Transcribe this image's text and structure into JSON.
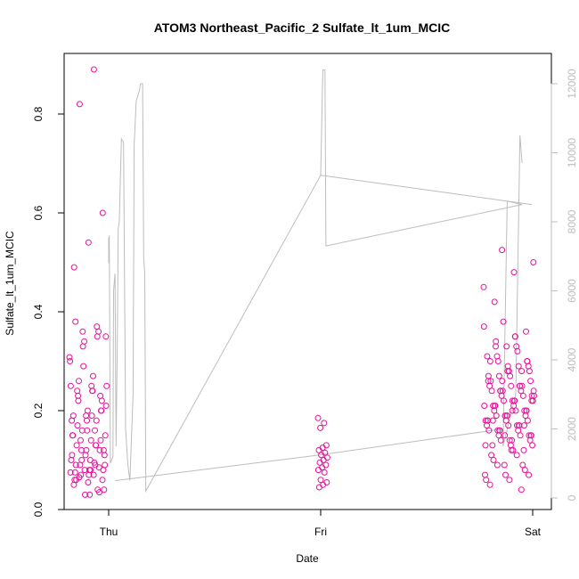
{
  "chart_data": {
    "type": "scatter",
    "title": "ATOM3 Northeast_Pacific_2 Sulfate_lt_1um_MCIC",
    "xlabel": "Date",
    "ylabel": "Sulfate_lt_1um_MCIC",
    "x_ticks": [
      "Thu",
      "Fri",
      "Sat"
    ],
    "y_ticks": [
      "0.0",
      "0.2",
      "0.4",
      "0.6",
      "0.8"
    ],
    "y2_ticks": [
      "0",
      "2000",
      "4000",
      "6000",
      "8000",
      "10000",
      "12000"
    ],
    "ylim": [
      0,
      0.9
    ],
    "y2lim": [
      0,
      12500
    ],
    "colors": {
      "points": "#e8119a",
      "altitude": "#bdbdbd",
      "axis": "#000000"
    },
    "series": [
      {
        "kind": "points",
        "clusters": [
          {
            "day": "Thu",
            "values": [
              0.308,
              0.24,
              0.22,
              0.2,
              0.16,
              0.15,
              0.13,
              0.1,
              0.09,
              0.08,
              0.06,
              0.035,
              0.03,
              0.25,
              0.89,
              0.82,
              0.6,
              0.54,
              0.49,
              0.35,
              0.33,
              0.21,
              0.19,
              0.17,
              0.14,
              0.12,
              0.11,
              0.09,
              0.07,
              0.04,
              0.03,
              0.38,
              0.36,
              0.34,
              0.3,
              0.27,
              0.26,
              0.22,
              0.2,
              0.19,
              0.18,
              0.16,
              0.15,
              0.14,
              0.13,
              0.12,
              0.11,
              0.1,
              0.095,
              0.09,
              0.08,
              0.07,
              0.06,
              0.04,
              0.29,
              0.25,
              0.24,
              0.23,
              0.2,
              0.18,
              0.15,
              0.13,
              0.12,
              0.11,
              0.1,
              0.09,
              0.085,
              0.08,
              0.075,
              0.07,
              0.065,
              0.06,
              0.055,
              0.05,
              0.37,
              0.36,
              0.35,
              0.25,
              0.24,
              0.23,
              0.19,
              0.18,
              0.16,
              0.14,
              0.12,
              0.08,
              0.075
            ]
          },
          {
            "day": "Fri",
            "values": [
              0.185,
              0.175,
              0.165,
              0.13,
              0.125,
              0.12,
              0.115,
              0.11,
              0.105,
              0.1,
              0.095,
              0.09,
              0.085,
              0.08,
              0.075,
              0.06,
              0.055,
              0.05,
              0.045
            ]
          },
          {
            "day": "Sat",
            "values": [
              0.45,
              0.35,
              0.33,
              0.3,
              0.28,
              0.26,
              0.25,
              0.24,
              0.22,
              0.2,
              0.18,
              0.17,
              0.15,
              0.13,
              0.11,
              0.09,
              0.07,
              0.06,
              0.05,
              0.04,
              0.525,
              0.5,
              0.48,
              0.42,
              0.36,
              0.33,
              0.31,
              0.29,
              0.27,
              0.26,
              0.25,
              0.24,
              0.23,
              0.22,
              0.21,
              0.2,
              0.19,
              0.18,
              0.17,
              0.16,
              0.15,
              0.14,
              0.13,
              0.12,
              0.1,
              0.08,
              0.07,
              0.06,
              0.32,
              0.3,
              0.28,
              0.27,
              0.26,
              0.25,
              0.24,
              0.23,
              0.22,
              0.21,
              0.2,
              0.19,
              0.18,
              0.17,
              0.16,
              0.15,
              0.14,
              0.13,
              0.12,
              0.09,
              0.07,
              0.33,
              0.31,
              0.29,
              0.28,
              0.25,
              0.24,
              0.23,
              0.22,
              0.21,
              0.2,
              0.19,
              0.18,
              0.17,
              0.16,
              0.15,
              0.14,
              0.13,
              0.11,
              0.09,
              0.38,
              0.37,
              0.35,
              0.34,
              0.3,
              0.29,
              0.27,
              0.25,
              0.24,
              0.23,
              0.22,
              0.21,
              0.2,
              0.19,
              0.18,
              0.17,
              0.16,
              0.15,
              0.14,
              0.3,
              0.28,
              0.26,
              0.24,
              0.22,
              0.21,
              0.2,
              0.19,
              0.18,
              0.17,
              0.16,
              0.15,
              0.12
            ]
          }
        ]
      },
      {
        "kind": "altitude-line",
        "axis": "right",
        "points": [
          {
            "day": 0.0,
            "alt": 6800
          },
          {
            "day": 0.0,
            "alt": 7500
          },
          {
            "day": 0.003,
            "alt": 7600
          },
          {
            "day": 0.008,
            "alt": 1000
          },
          {
            "day": 0.02,
            "alt": 1200
          },
          {
            "day": 0.023,
            "alt": 6000
          },
          {
            "day": 0.03,
            "alt": 6500
          },
          {
            "day": 0.035,
            "alt": 1500
          },
          {
            "day": 0.04,
            "alt": 4000
          },
          {
            "day": 0.045,
            "alt": 7800
          },
          {
            "day": 0.05,
            "alt": 8000
          },
          {
            "day": 0.06,
            "alt": 10400
          },
          {
            "day": 0.07,
            "alt": 10300
          },
          {
            "day": 0.08,
            "alt": 2000
          },
          {
            "day": 0.09,
            "alt": 1000
          },
          {
            "day": 0.1,
            "alt": 500
          },
          {
            "day": 0.115,
            "alt": 3000
          },
          {
            "day": 0.12,
            "alt": 10200
          },
          {
            "day": 0.13,
            "alt": 11500
          },
          {
            "day": 0.145,
            "alt": 11800
          },
          {
            "day": 0.15,
            "alt": 12000
          },
          {
            "day": 0.16,
            "alt": 12000
          },
          {
            "day": 0.165,
            "alt": 7000
          },
          {
            "day": 0.17,
            "alt": 6500
          },
          {
            "day": 0.175,
            "alt": 200
          },
          {
            "day": 1.0,
            "alt": 9350
          },
          {
            "day": 1.01,
            "alt": 12400
          },
          {
            "day": 1.02,
            "alt": 12400
          },
          {
            "day": 1.025,
            "alt": 7300
          },
          {
            "day": 1.95,
            "alt": 8500
          },
          {
            "day": 1.88,
            "alt": 8600
          },
          {
            "day": 1.86,
            "alt": 1500
          },
          {
            "day": 1.92,
            "alt": 3000
          },
          {
            "day": 1.94,
            "alt": 10500
          },
          {
            "day": 1.95,
            "alt": 9700
          }
        ]
      }
    ],
    "grid": false,
    "legend": "none"
  }
}
